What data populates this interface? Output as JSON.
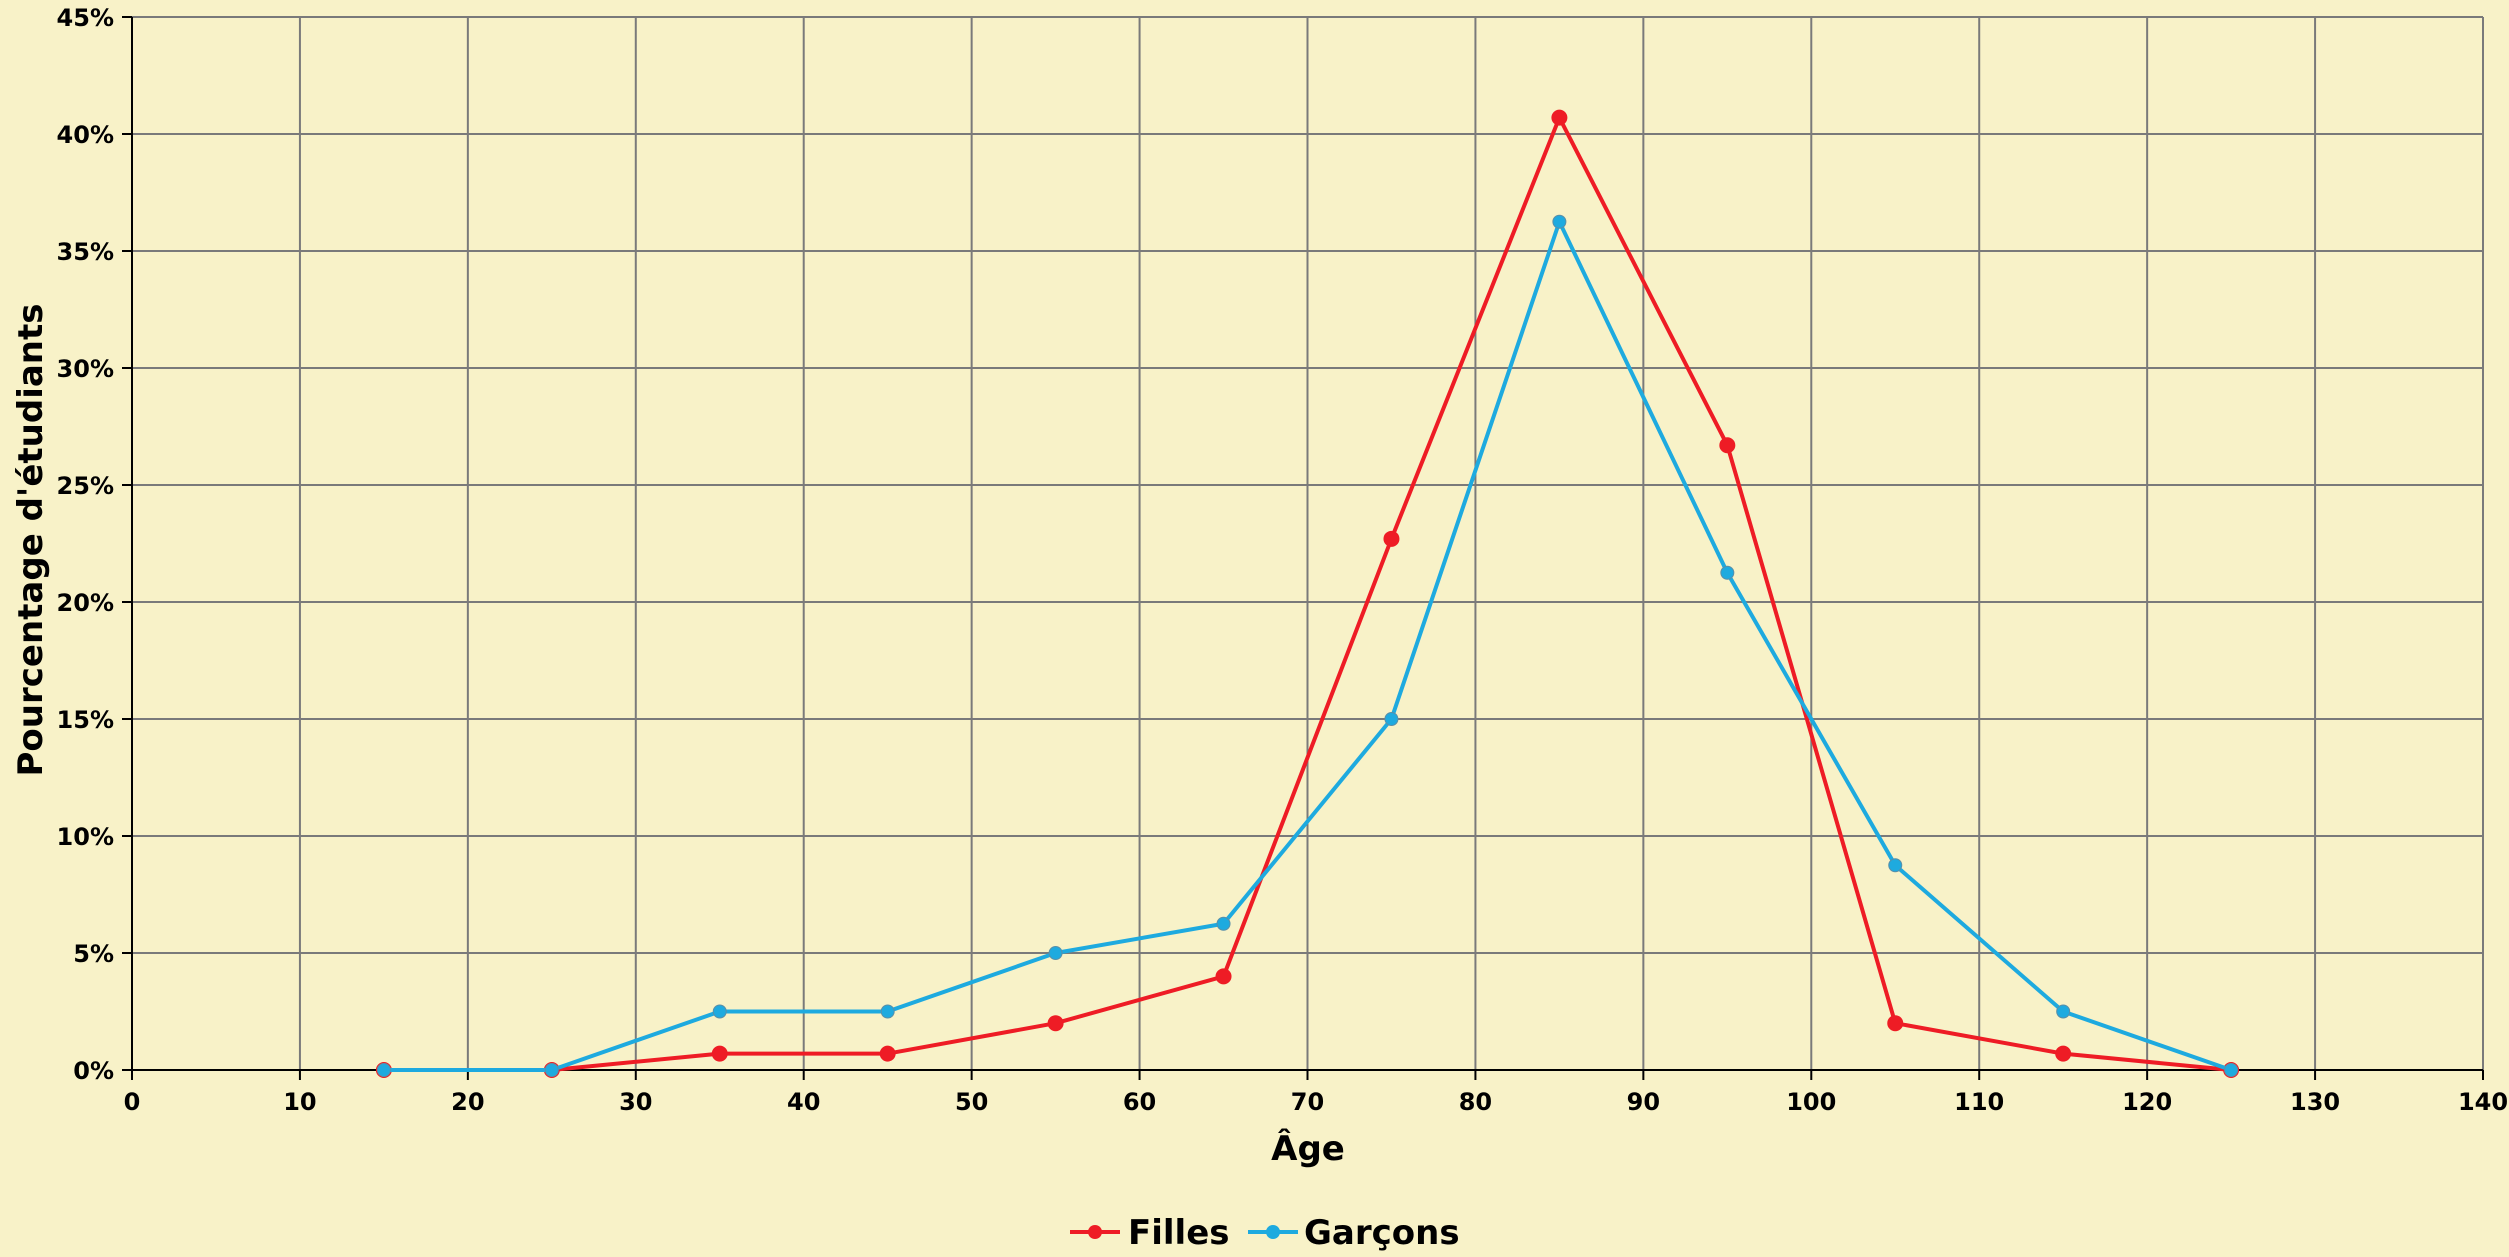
{
  "chart_data": {
    "type": "line",
    "xlabel": "Âge",
    "ylabel": "Pourcentage d'étudiants",
    "xlim": [
      0,
      140
    ],
    "ylim": [
      0,
      45
    ],
    "x_ticks": [
      0,
      10,
      20,
      30,
      40,
      50,
      60,
      70,
      80,
      90,
      100,
      110,
      120,
      130,
      140
    ],
    "x_tick_labels": [
      "0",
      "10",
      "20",
      "30",
      "40",
      "50",
      "60",
      "70",
      "80",
      "90",
      "100",
      "110",
      "120",
      "130",
      "140"
    ],
    "y_ticks": [
      0,
      5,
      10,
      15,
      20,
      25,
      30,
      35,
      40,
      45
    ],
    "y_tick_labels": [
      "0%",
      "5%",
      "10%",
      "15%",
      "20%",
      "25%",
      "30%",
      "35%",
      "40%",
      "45%"
    ],
    "grid": true,
    "legend_position": "bottom",
    "x": [
      15,
      25,
      35,
      45,
      55,
      65,
      75,
      85,
      95,
      105,
      115,
      125
    ],
    "series": [
      {
        "name": "Filles",
        "color": "#ee1c25",
        "values": [
          0,
          0,
          0.7,
          0.7,
          2.0,
          4.0,
          22.7,
          40.7,
          26.7,
          2.0,
          0.7,
          0
        ]
      },
      {
        "name": "Garçons",
        "color": "#1eaadf",
        "values": [
          0,
          0,
          2.5,
          2.5,
          5.0,
          6.25,
          15.0,
          36.25,
          21.25,
          8.75,
          2.5,
          0
        ]
      }
    ]
  }
}
